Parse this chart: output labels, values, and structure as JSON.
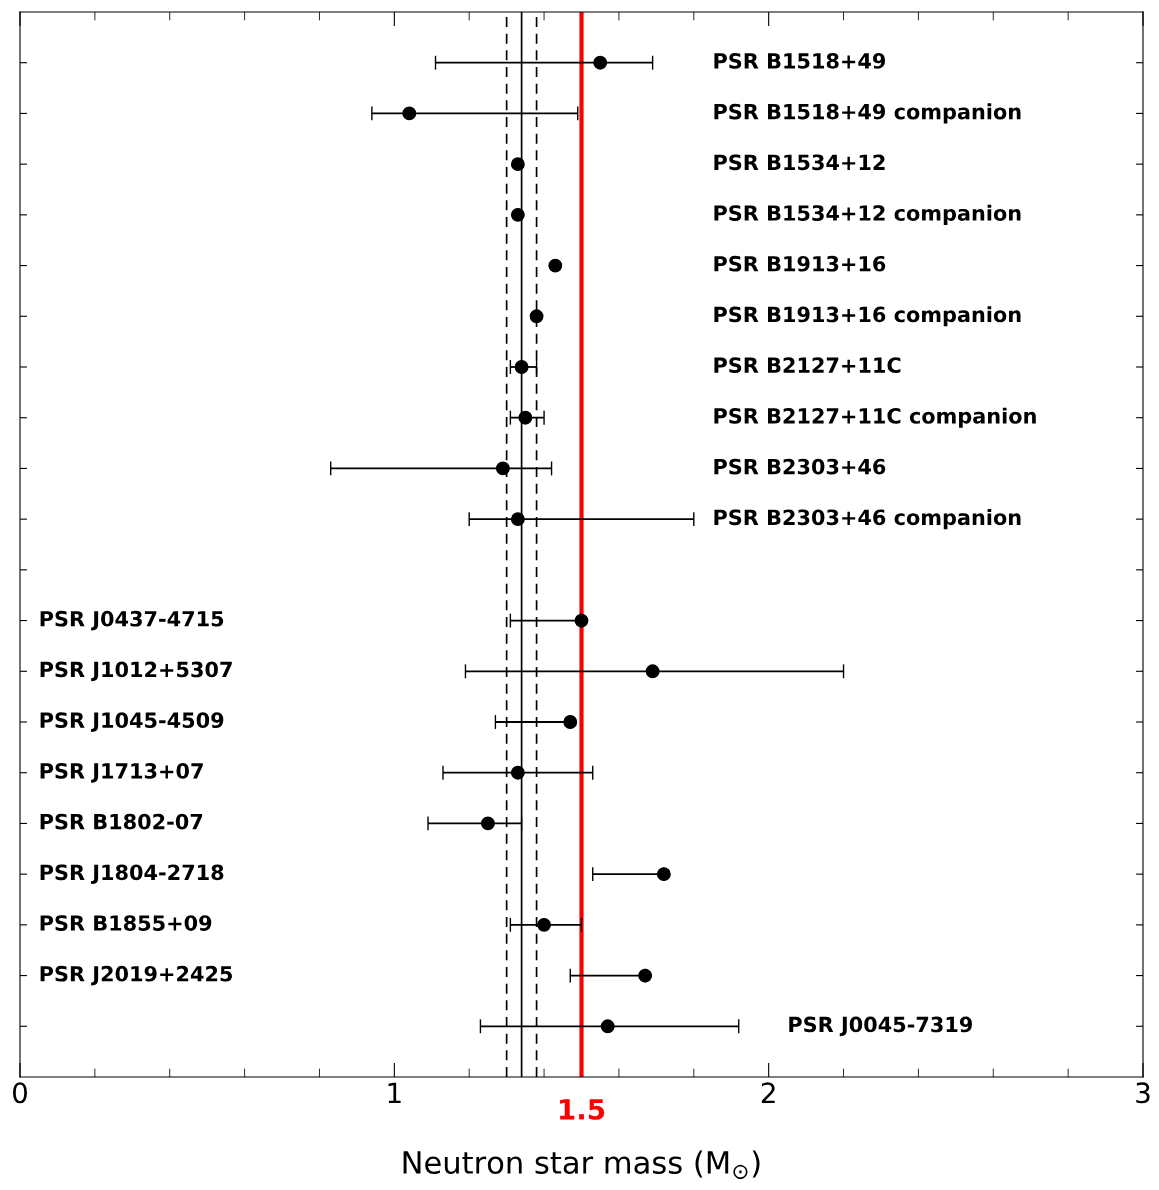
{
  "chart_data": {
    "type": "scatter",
    "orientation": "horizontal",
    "xlabel": "Neutron star mass (M$_{⊙}$)",
    "categories": [
      "PSR B1518+49",
      "PSR B1518+49 companion",
      "PSR B1534+12",
      "PSR B1534+12 companion",
      "PSR B1913+16",
      "PSR B1913+16 companion",
      "PSR B2127+11C",
      "PSR B2127+11C companion",
      "PSR B2303+46",
      "PSR B2303+46 companion",
      null,
      "PSR J0437-4715",
      "PSR J1012+5307",
      "PSR J1045-4509",
      "PSR J1713+07",
      "PSR B1802-07",
      "PSR J1804-2718",
      "PSR B1855+09",
      "PSR J2019+2425",
      "PSR J0045-7319"
    ],
    "series": [
      {
        "color": "#000000",
        "values": [
          1.55,
          1.04,
          1.33,
          1.33,
          1.43,
          1.38,
          1.34,
          1.35,
          1.29,
          1.33,
          null,
          1.5,
          1.69,
          1.47,
          1.33,
          1.25,
          1.72,
          1.4,
          1.67,
          1.57
        ],
        "errors": [
          [
            1.11,
            1.69
          ],
          [
            0.94,
            1.49
          ],
          null,
          null,
          null,
          null,
          [
            1.31,
            1.38
          ],
          [
            1.31,
            1.4
          ],
          [
            0.83,
            1.42
          ],
          [
            1.2,
            1.8
          ],
          null,
          [
            1.31,
            1.5
          ],
          [
            1.19,
            2.2
          ],
          [
            1.27,
            1.47
          ],
          [
            1.13,
            1.53
          ],
          [
            1.09,
            1.34
          ],
          [
            1.53,
            1.72
          ],
          [
            1.31,
            1.5
          ],
          [
            1.47,
            1.67
          ],
          [
            1.23,
            1.92
          ]
        ]
      }
    ],
    "marker": "circle",
    "xlim": [
      0,
      3
    ],
    "xticks": [
      0,
      1,
      2,
      3
    ],
    "tick_labels": "x",
    "grid": false,
    "legend": false,
    "ref_lines": [
      {
        "axis": "x",
        "value": 1.34,
        "color": "#000000",
        "line_style": "solid"
      },
      {
        "axis": "x",
        "value": 1.3,
        "color": "#000000",
        "line_style": "dashed"
      },
      {
        "axis": "x",
        "value": 1.38,
        "color": "#000000",
        "line_style": "dashed"
      },
      {
        "axis": "x",
        "value": 1.5,
        "label": "1.5",
        "color": "#ff0000",
        "line_style": "solid"
      }
    ]
  }
}
